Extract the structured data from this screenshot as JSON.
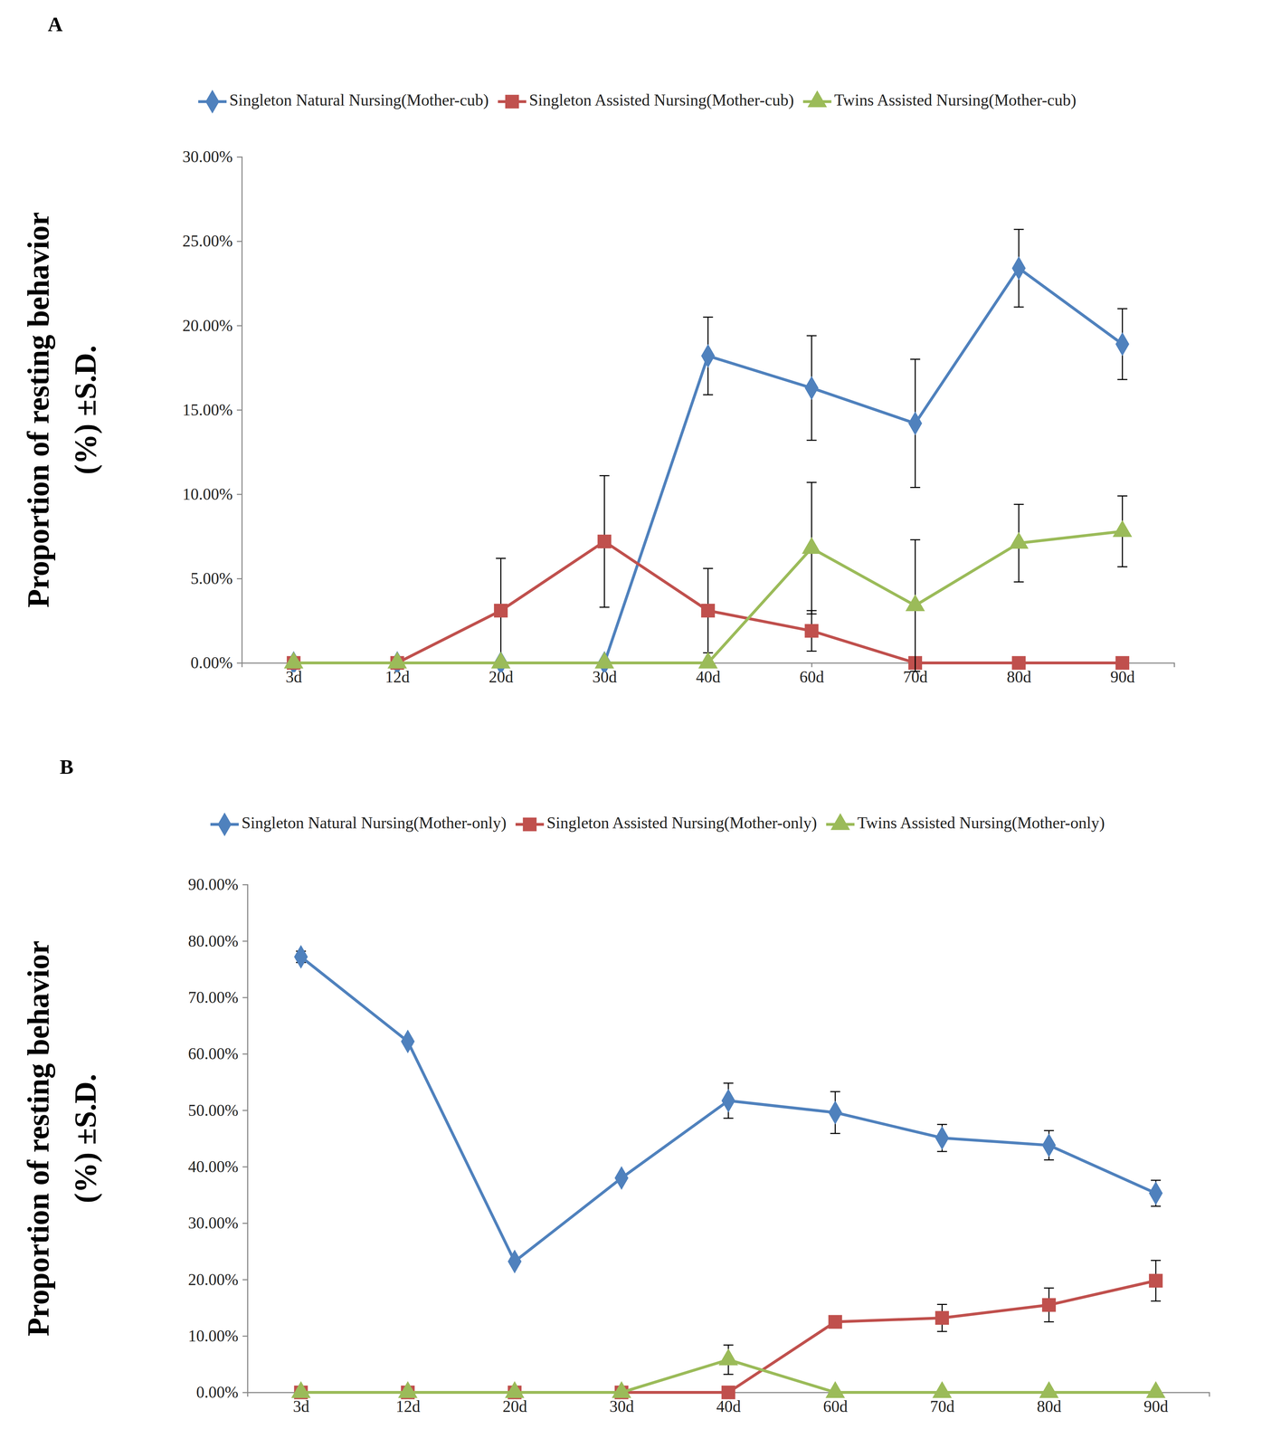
{
  "chart_data": [
    {
      "type": "line",
      "panel_label": "A",
      "y_label": [
        "Proportion  of resting behavior",
        "(%)  ±S.D."
      ],
      "categories": [
        "3d",
        "12d",
        "20d",
        "30d",
        "40d",
        "60d",
        "70d",
        "80d",
        "90d"
      ],
      "series": [
        {
          "name": "Singleton Natural Nursing(Mother-cub)",
          "color": "#4f81bd",
          "marker": "diamond",
          "values": [
            0,
            0,
            0,
            0,
            18.2,
            16.3,
            14.2,
            23.4,
            18.9
          ],
          "errors": [
            0,
            0,
            0,
            0,
            2.3,
            3.1,
            3.8,
            2.3,
            2.1
          ]
        },
        {
          "name": "Singleton Assisted Nursing(Mother-cub)",
          "color": "#c0504d",
          "marker": "square",
          "values": [
            0,
            0,
            3.1,
            7.2,
            3.1,
            1.9,
            0,
            0,
            0
          ],
          "errors": [
            0,
            0,
            3.1,
            3.9,
            2.5,
            1.2,
            0,
            0,
            0
          ]
        },
        {
          "name": "Twins Assisted Nursing(Mother-cub)",
          "color": "#9bbb59",
          "marker": "triangle",
          "values": [
            0,
            0,
            0,
            0,
            0,
            6.8,
            3.4,
            7.1,
            7.8
          ],
          "errors": [
            0,
            0,
            0,
            0,
            0,
            3.9,
            3.9,
            2.3,
            2.1
          ]
        }
      ],
      "ylim": [
        0,
        30
      ],
      "yticks": [
        {
          "value": 0,
          "label": "0.00%"
        },
        {
          "value": 5,
          "label": "5.00%"
        },
        {
          "value": 10,
          "label": "10.00%"
        },
        {
          "value": 15,
          "label": "15.00%"
        },
        {
          "value": 20,
          "label": "20.00%"
        },
        {
          "value": 25,
          "label": "25.00%"
        },
        {
          "value": 30,
          "label": "30.00%"
        }
      ],
      "legend": "top",
      "grid": false
    },
    {
      "type": "line",
      "panel_label": "B",
      "y_label": [
        "Proportion  of resting behavior",
        "(%)  ±S.D."
      ],
      "categories": [
        "3d",
        "12d",
        "20d",
        "30d",
        "40d",
        "60d",
        "70d",
        "80d",
        "90d"
      ],
      "series": [
        {
          "name": "Singleton Natural Nursing(Mother-only)",
          "color": "#4f81bd",
          "marker": "diamond",
          "values": [
            77.2,
            62.2,
            23.2,
            38.0,
            51.7,
            49.6,
            45.1,
            43.8,
            35.3
          ],
          "errors": [
            1.0,
            0.5,
            0.5,
            0.5,
            3.1,
            3.7,
            2.4,
            2.6,
            2.3
          ]
        },
        {
          "name": "Singleton Assisted Nursing(Mother-only)",
          "color": "#c0504d",
          "marker": "square",
          "values": [
            0,
            0,
            0,
            0,
            0,
            12.5,
            13.2,
            15.5,
            19.8
          ],
          "errors": [
            0,
            0,
            0,
            0,
            0,
            0.8,
            2.4,
            3.0,
            3.6
          ]
        },
        {
          "name": "Twins Assisted Nursing(Mother-only)",
          "color": "#9bbb59",
          "marker": "triangle",
          "values": [
            0,
            0,
            0,
            0,
            5.8,
            0,
            0,
            0,
            0
          ],
          "errors": [
            0,
            0,
            0,
            0,
            2.6,
            0,
            0,
            0,
            0
          ]
        }
      ],
      "ylim": [
        0,
        90
      ],
      "yticks": [
        {
          "value": 0,
          "label": "0.00%"
        },
        {
          "value": 10,
          "label": "10.00%"
        },
        {
          "value": 20,
          "label": "20.00%"
        },
        {
          "value": 30,
          "label": "30.00%"
        },
        {
          "value": 40,
          "label": "40.00%"
        },
        {
          "value": 50,
          "label": "50.00%"
        },
        {
          "value": 60,
          "label": "60.00%"
        },
        {
          "value": 70,
          "label": "70.00%"
        },
        {
          "value": 80,
          "label": "80.00%"
        },
        {
          "value": 90,
          "label": "90.00%"
        }
      ],
      "legend": "top",
      "grid": false
    }
  ]
}
